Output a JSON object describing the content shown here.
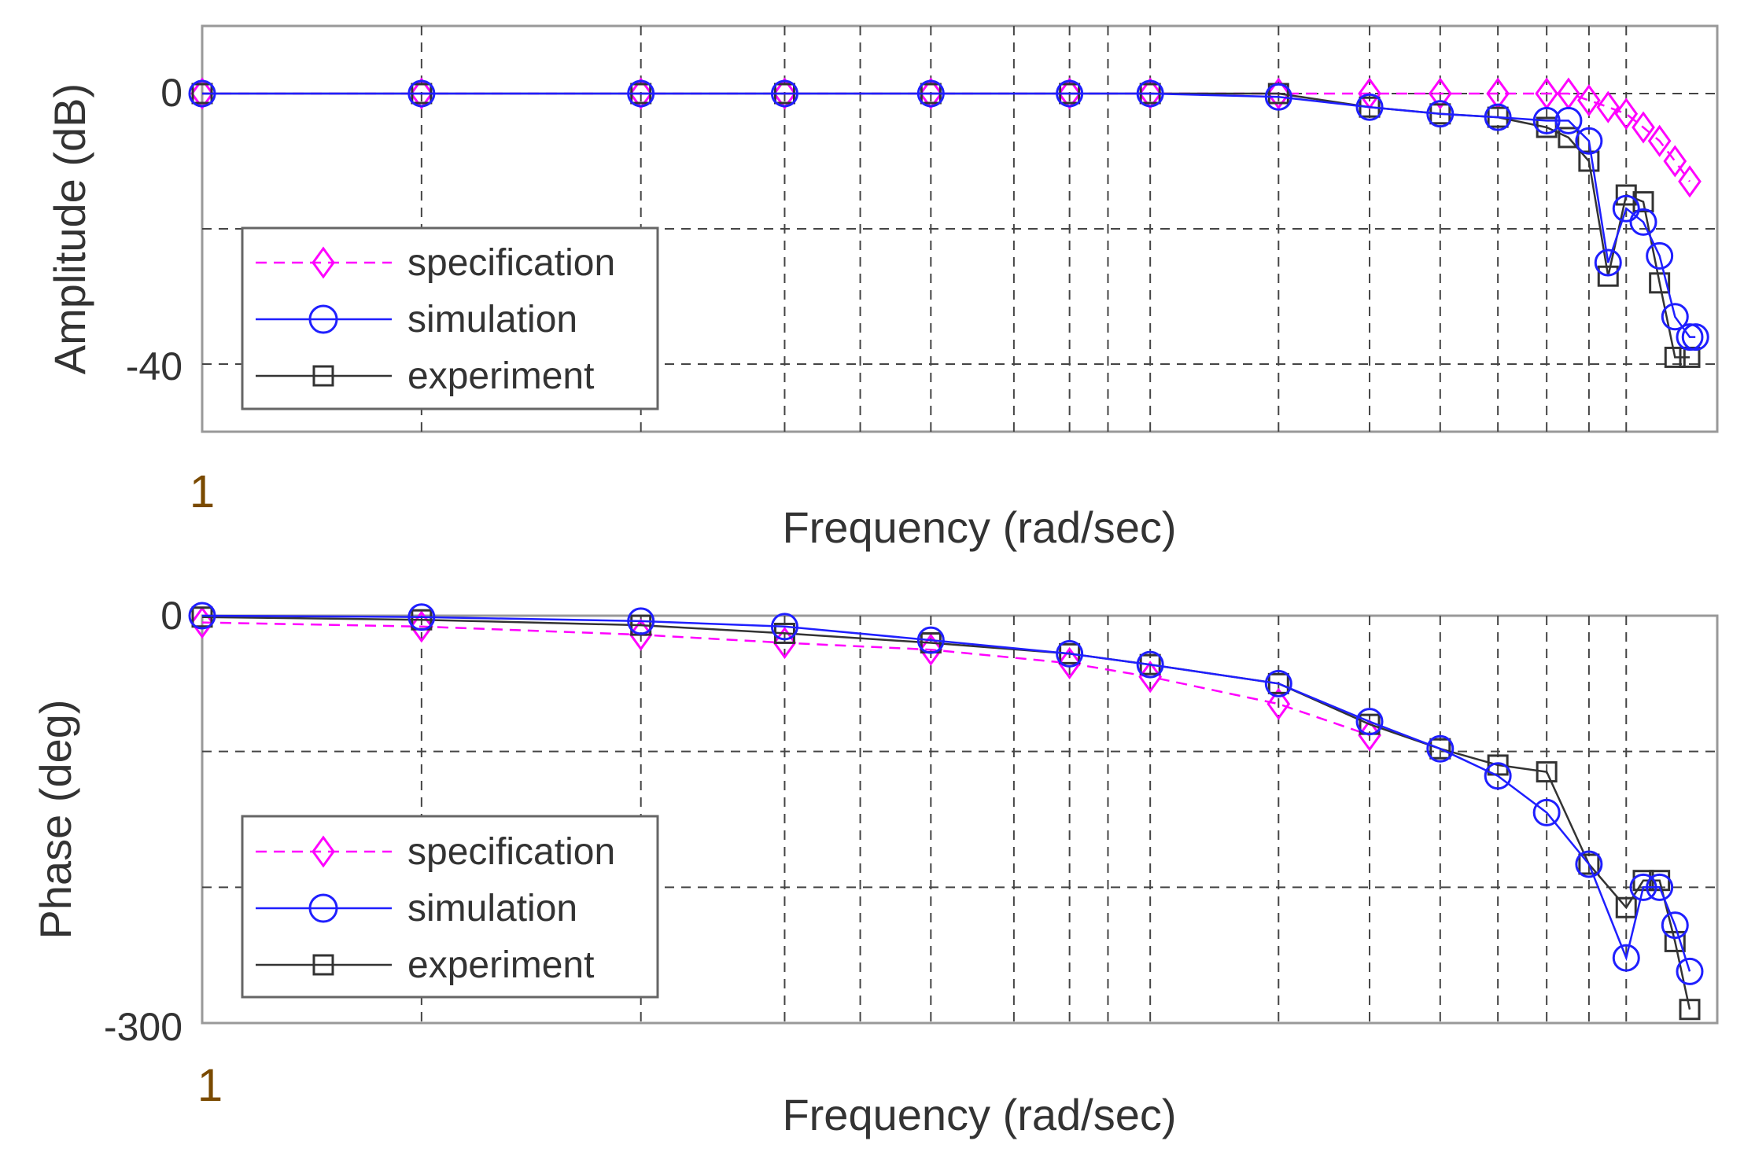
{
  "figure_title": "",
  "chart_data": [
    {
      "type": "line",
      "id": "amplitude",
      "title": "",
      "xlabel": "Frequency (rad/sec)",
      "ylabel": "Amplitude (dB)",
      "xscale": "log",
      "xlim": [
        1,
        120
      ],
      "ylim": [
        -50,
        10
      ],
      "yticks": [
        0,
        -40
      ],
      "ytick_labels": [
        "0",
        "-40"
      ],
      "xtick_label": "1",
      "grid": true,
      "legend_position": "bottom-left",
      "x": [
        1,
        2,
        4,
        6.3,
        10,
        15.5,
        20,
        30,
        40,
        50,
        60,
        70,
        75,
        80,
        85,
        90,
        95,
        100,
        105,
        110
      ],
      "series": [
        {
          "name": "specification",
          "color": "#ff00ff",
          "style": "dashed",
          "marker": "diamond",
          "x": [
            1,
            2,
            4,
            6.3,
            10,
            15.5,
            20,
            30,
            40,
            50,
            60,
            70,
            75,
            80,
            85,
            90,
            95,
            100,
            105,
            110
          ],
          "values": [
            0,
            0,
            0,
            0,
            0,
            0,
            0,
            0,
            0,
            0,
            0,
            0,
            0,
            -1,
            -2,
            -3,
            -5,
            -7,
            -10,
            -13
          ]
        },
        {
          "name": "simulation",
          "color": "#1f1fff",
          "style": "solid",
          "marker": "circle",
          "x": [
            1,
            2,
            4,
            6.3,
            10,
            15.5,
            20,
            30,
            40,
            50,
            60,
            70,
            75,
            80,
            85,
            90,
            95,
            100,
            105,
            110,
            112
          ],
          "values": [
            0,
            0,
            0,
            0,
            0,
            0,
            0,
            -0.5,
            -2,
            -3,
            -3.5,
            -4,
            -4,
            -7,
            -25,
            -17,
            -19,
            -24,
            -33,
            -36,
            -36
          ]
        },
        {
          "name": "experiment",
          "color": "#333333",
          "style": "solid",
          "marker": "square",
          "x": [
            1,
            2,
            4,
            6.3,
            10,
            15.5,
            20,
            30,
            40,
            50,
            60,
            70,
            75,
            80,
            85,
            90,
            95,
            100,
            105,
            110
          ],
          "values": [
            0,
            0,
            0,
            0,
            0,
            0,
            0,
            0,
            -2,
            -3,
            -3.5,
            -5,
            -6.5,
            -10,
            -27,
            -15,
            -16,
            -28,
            -39,
            -39
          ]
        }
      ]
    },
    {
      "type": "line",
      "id": "phase",
      "title": "",
      "xlabel": "Frequency (rad/sec)",
      "ylabel": "Phase (deg)",
      "xscale": "log",
      "xlim": [
        1,
        120
      ],
      "ylim": [
        -300,
        0
      ],
      "yticks": [
        0,
        -300
      ],
      "ytick_labels": [
        "0",
        "-300"
      ],
      "xtick_label": "1",
      "grid": true,
      "legend_position": "bottom-left",
      "series": [
        {
          "name": "specification",
          "color": "#ff00ff",
          "style": "dashed",
          "marker": "diamond",
          "x": [
            1,
            2,
            4,
            6.3,
            10,
            15.5,
            20,
            30,
            40
          ],
          "values": [
            -5,
            -8,
            -14,
            -20,
            -25,
            -35,
            -45,
            -65,
            -88
          ]
        },
        {
          "name": "simulation",
          "color": "#1f1fff",
          "style": "solid",
          "marker": "circle",
          "x": [
            1,
            2,
            4,
            6.3,
            10,
            15.5,
            20,
            30,
            40,
            50,
            60,
            70,
            80,
            90,
            95,
            100,
            105,
            110
          ],
          "values": [
            0,
            -1,
            -4,
            -8,
            -18,
            -28,
            -36,
            -50,
            -78,
            -98,
            -118,
            -145,
            -183,
            -252,
            -200,
            -200,
            -228,
            -262
          ]
        },
        {
          "name": "experiment",
          "color": "#333333",
          "style": "solid",
          "marker": "square",
          "x": [
            1,
            2,
            4,
            6.3,
            10,
            15.5,
            20,
            30,
            40,
            50,
            60,
            70,
            80,
            90,
            95,
            100,
            105,
            110
          ],
          "values": [
            -1,
            -3,
            -7,
            -13,
            -20,
            -28,
            -36,
            -50,
            -80,
            -98,
            -110,
            -115,
            -183,
            -215,
            -195,
            -195,
            -240,
            -290
          ]
        }
      ]
    }
  ]
}
